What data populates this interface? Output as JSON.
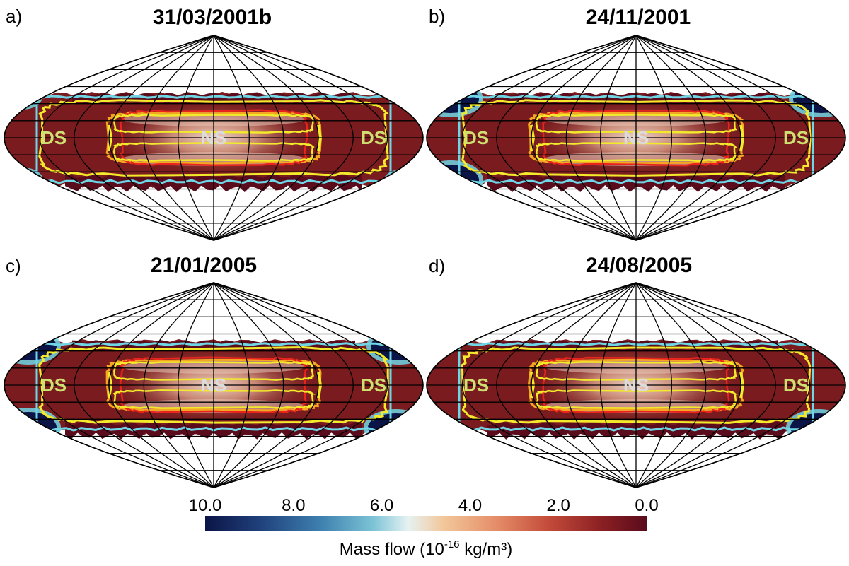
{
  "chart_data": {
    "type": "heatmap",
    "projection": "sinusoidal",
    "panels": [
      {
        "letter": "a)",
        "title": "31/03/2001b",
        "regions": [
          {
            "label": "DS"
          },
          {
            "label": "NS"
          },
          {
            "label": "DS"
          }
        ],
        "dark_lobes": [
          "left-top-small",
          "left-bottom-small",
          "right-bottom-small"
        ]
      },
      {
        "letter": "b)",
        "title": "24/11/2001",
        "regions": [
          {
            "label": "DS"
          },
          {
            "label": "NS"
          },
          {
            "label": "DS"
          }
        ],
        "dark_lobes": [
          "left-top",
          "left-bottom",
          "right-top"
        ]
      },
      {
        "letter": "c)",
        "title": "21/01/2005",
        "regions": [
          {
            "label": "DS"
          },
          {
            "label": "NS"
          },
          {
            "label": "DS"
          }
        ],
        "dark_lobes": [
          "left-top",
          "left-bottom",
          "right-top",
          "right-bottom"
        ]
      },
      {
        "letter": "d)",
        "title": "24/08/2005",
        "regions": [
          {
            "label": "DS"
          },
          {
            "label": "NS"
          },
          {
            "label": "DS"
          }
        ],
        "dark_lobes": [
          "right-bottom"
        ]
      }
    ],
    "colorbar": {
      "label_prefix": "Mass flow (10",
      "label_exponent": "-16",
      "label_suffix": " kg/m³)",
      "ticks": [
        "10.0",
        "8.0",
        "6.0",
        "4.0",
        "2.0",
        "0.0"
      ],
      "range": [
        10.0,
        0.0
      ],
      "colors": [
        "#0b1446",
        "#1f3f7a",
        "#3d7fae",
        "#7cc3d6",
        "#e6f2f2",
        "#f2c79a",
        "#e58d68",
        "#c24a3a",
        "#8a1f22",
        "#5a0b1c"
      ]
    },
    "contour_colors": [
      "#f2ea2a",
      "#f5a623",
      "#e8241c",
      "#6fd6e6"
    ],
    "region_label_color": "#cfe070",
    "ns_label_color": "#dcdcdc"
  }
}
